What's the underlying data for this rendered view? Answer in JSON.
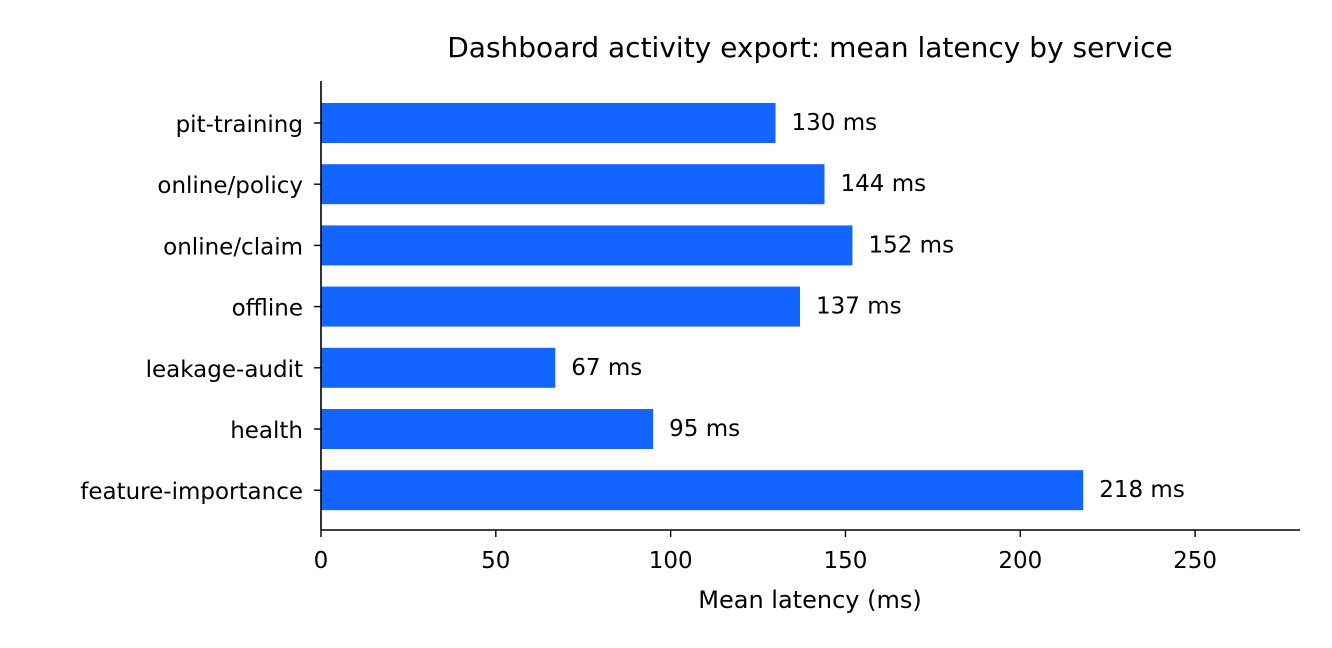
{
  "chart_data": {
    "type": "bar",
    "orientation": "horizontal",
    "title": "Dashboard activity export: mean latency by service",
    "xlabel": "Mean latency (ms)",
    "ylabel": "",
    "categories": [
      "pit-training",
      "online/policy",
      "online/claim",
      "offline",
      "leakage-audit",
      "health",
      "feature-importance"
    ],
    "values": [
      130,
      144,
      152,
      137,
      67,
      95,
      218
    ],
    "data_labels": [
      "130 ms",
      "144 ms",
      "152 ms",
      "137 ms",
      "67 ms",
      "95 ms",
      "218 ms"
    ],
    "xlim": [
      0,
      280
    ],
    "xticks": [
      0,
      50,
      100,
      150,
      200,
      250
    ],
    "grid": false,
    "bar_color": "#1464FF"
  }
}
